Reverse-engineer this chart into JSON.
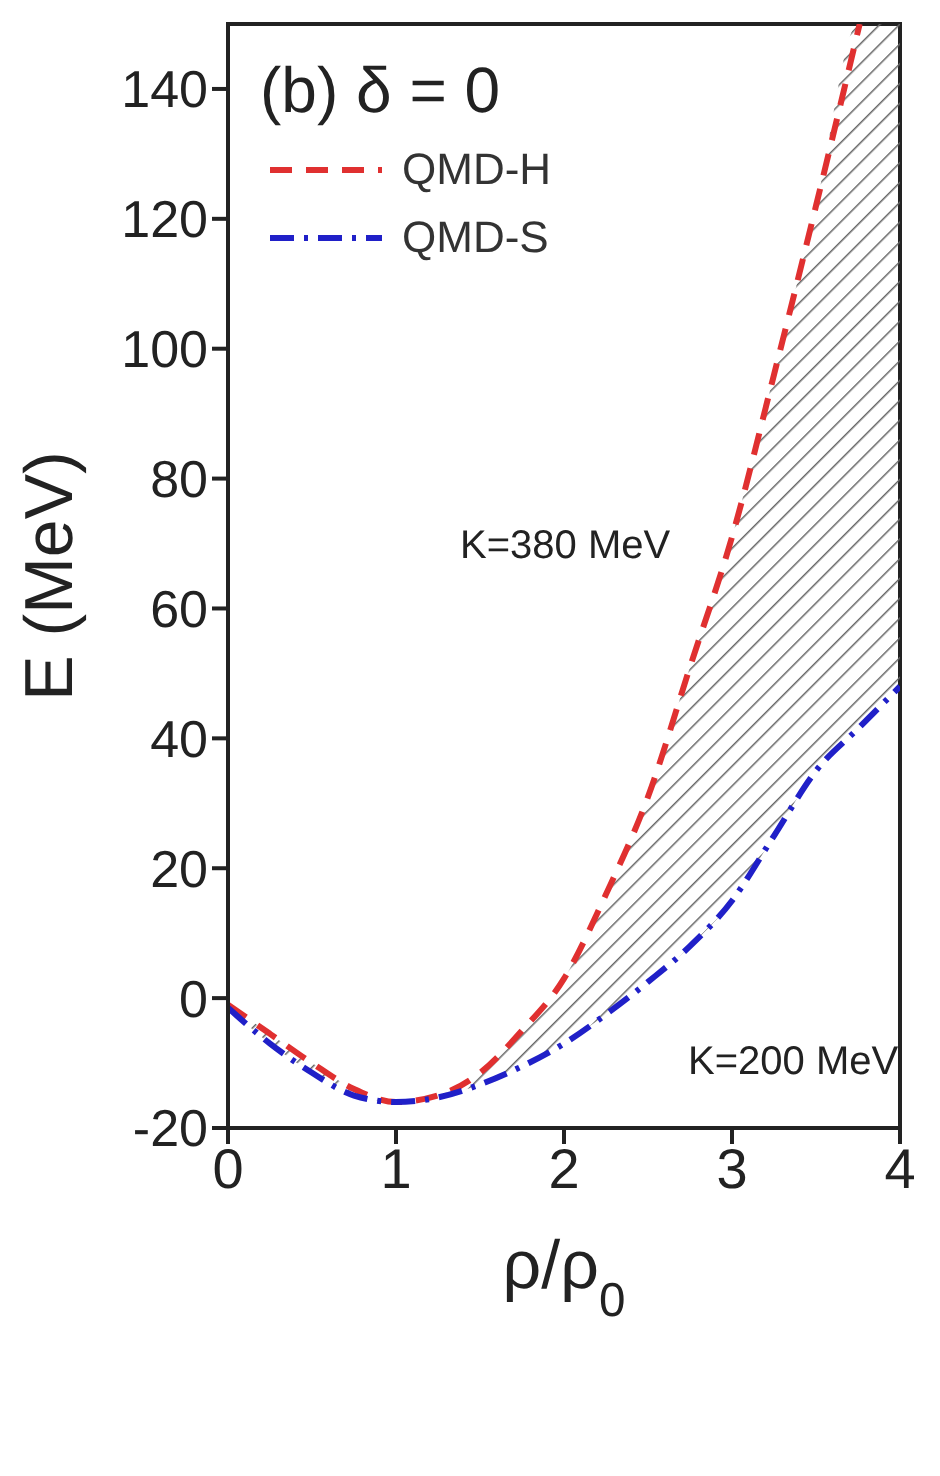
{
  "chart_data": {
    "type": "line",
    "title": "(b) δ = 0",
    "xlabel": "ρ/ρ$_{0}$",
    "ylabel": "E (MeV)",
    "xlim": [
      0,
      4
    ],
    "xticks": [
      0,
      1,
      2,
      3,
      4
    ],
    "ylim": [
      -20,
      150
    ],
    "yticks": [
      -20,
      0,
      20,
      40,
      60,
      80,
      100,
      120,
      140
    ],
    "legend": "top left",
    "series": [
      {
        "name": "QMD-H",
        "color": "#e03030",
        "line_style": "dashed",
        "x": [
          0,
          0.25,
          0.5,
          0.75,
          1,
          1.25,
          1.5,
          1.75,
          2,
          2.25,
          2.5,
          2.75,
          3,
          3.25,
          3.5,
          3.76
        ],
        "values": [
          -1,
          -5.5,
          -10,
          -14,
          -16,
          -15,
          -11.5,
          -5,
          3,
          16,
          31,
          51,
          71,
          96,
          122,
          150
        ]
      },
      {
        "name": "QMD-S",
        "color": "#2020c8",
        "line_style": "dashdot",
        "x": [
          0,
          0.25,
          0.5,
          0.75,
          1,
          1.25,
          1.5,
          1.75,
          2,
          2.25,
          2.5,
          2.75,
          3,
          3.25,
          3.5,
          3.75,
          4
        ],
        "values": [
          -1.5,
          -7,
          -11.5,
          -15,
          -16,
          -15.3,
          -13.3,
          -10.5,
          -7,
          -2.5,
          2.5,
          8,
          15,
          25,
          35,
          41.5,
          48
        ]
      }
    ],
    "annotations": [
      "K=380 MeV",
      "K=200 MeV"
    ]
  }
}
